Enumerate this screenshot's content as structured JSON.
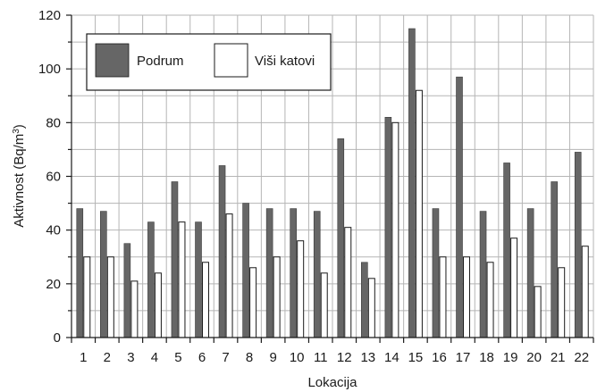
{
  "chart_data": {
    "type": "bar",
    "title": "",
    "xlabel": "Lokacija",
    "ylabel_main": "Aktivnost (Bq/m",
    "ylabel_sup": "3",
    "ylabel_end": ")",
    "ylim": [
      0,
      120
    ],
    "yticks": [
      0,
      20,
      40,
      60,
      80,
      100,
      120
    ],
    "grid": true,
    "legend_position": "top-left",
    "categories": [
      "1",
      "2",
      "3",
      "4",
      "5",
      "6",
      "7",
      "8",
      "9",
      "10",
      "11",
      "12",
      "13",
      "14",
      "15",
      "16",
      "17",
      "18",
      "19",
      "20",
      "21",
      "22"
    ],
    "series": [
      {
        "name": "Podrum",
        "color": "#666666",
        "values": [
          48,
          47,
          35,
          43,
          58,
          43,
          64,
          50,
          48,
          48,
          47,
          74,
          28,
          82,
          115,
          48,
          97,
          47,
          65,
          48,
          58,
          69
        ]
      },
      {
        "name": "Viši katovi",
        "color": "#ffffff",
        "values": [
          30,
          30,
          21,
          24,
          43,
          28,
          46,
          26,
          30,
          36,
          24,
          41,
          22,
          80,
          92,
          30,
          30,
          28,
          37,
          19,
          26,
          34
        ]
      }
    ]
  }
}
